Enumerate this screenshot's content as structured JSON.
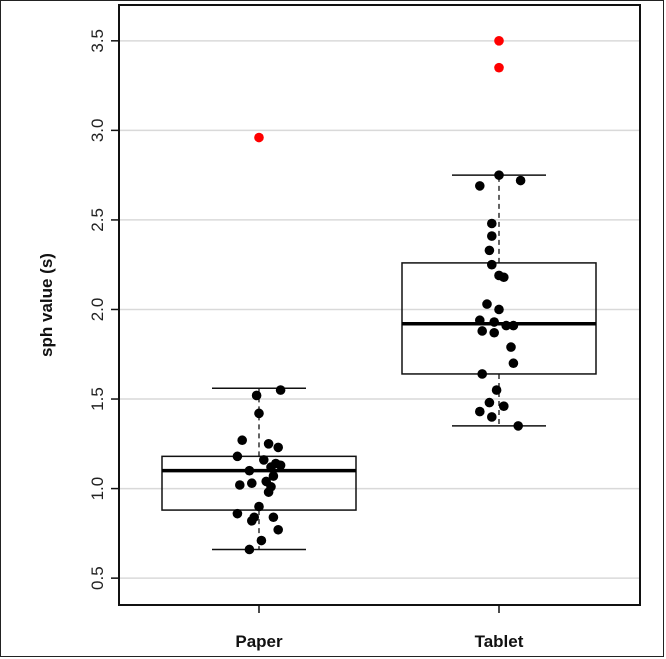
{
  "chart_data": {
    "type": "box",
    "ylabel": "sph value (s)",
    "ylim": [
      0.35,
      3.7
    ],
    "yticks": [
      "0.5",
      "1.0",
      "1.5",
      "2.0",
      "2.5",
      "3.0",
      "3.5"
    ],
    "grid": "horizontal",
    "categories": [
      "Paper",
      "Tablet"
    ],
    "boxes": [
      {
        "category": "Paper",
        "whisker_low": 0.66,
        "q1": 0.88,
        "median": 1.1,
        "q3": 1.18,
        "whisker_high": 1.56,
        "outliers": [
          2.96
        ],
        "points": [
          [
            -0.01,
            1.52
          ],
          [
            0.0,
            1.42
          ],
          [
            -0.07,
            1.27
          ],
          [
            0.08,
            1.23
          ],
          [
            0.04,
            1.25
          ],
          [
            -0.09,
            1.18
          ],
          [
            0.02,
            1.16
          ],
          [
            0.07,
            1.14
          ],
          [
            0.05,
            1.12
          ],
          [
            0.09,
            1.13
          ],
          [
            -0.04,
            1.1
          ],
          [
            0.06,
            1.07
          ],
          [
            -0.03,
            1.03
          ],
          [
            0.03,
            1.04
          ],
          [
            0.05,
            1.01
          ],
          [
            -0.08,
            1.02
          ],
          [
            0.04,
            0.98
          ],
          [
            0.0,
            0.9
          ],
          [
            0.06,
            0.84
          ],
          [
            -0.09,
            0.86
          ],
          [
            -0.03,
            0.82
          ],
          [
            -0.02,
            0.84
          ],
          [
            0.08,
            0.77
          ],
          [
            0.01,
            0.71
          ],
          [
            -0.04,
            0.66
          ],
          [
            0.09,
            1.55
          ]
        ],
        "box_color": "#000000"
      },
      {
        "category": "Tablet",
        "whisker_low": 1.35,
        "q1": 1.64,
        "median": 1.92,
        "q3": 2.26,
        "whisker_high": 2.75,
        "outliers": [
          3.5,
          3.35
        ],
        "points": [
          [
            0.0,
            2.75
          ],
          [
            -0.08,
            2.69
          ],
          [
            0.09,
            2.72
          ],
          [
            -0.03,
            2.48
          ],
          [
            -0.03,
            2.41
          ],
          [
            -0.04,
            2.33
          ],
          [
            -0.03,
            2.25
          ],
          [
            0.02,
            2.18
          ],
          [
            0.0,
            2.19
          ],
          [
            -0.05,
            2.03
          ],
          [
            0.0,
            2.0
          ],
          [
            -0.08,
            1.94
          ],
          [
            -0.02,
            1.93
          ],
          [
            0.03,
            1.91
          ],
          [
            -0.07,
            1.88
          ],
          [
            0.06,
            1.91
          ],
          [
            -0.02,
            1.87
          ],
          [
            0.05,
            1.79
          ],
          [
            0.06,
            1.7
          ],
          [
            -0.07,
            1.64
          ],
          [
            -0.01,
            1.55
          ],
          [
            -0.04,
            1.48
          ],
          [
            0.02,
            1.46
          ],
          [
            -0.08,
            1.43
          ],
          [
            -0.03,
            1.4
          ],
          [
            0.08,
            1.35
          ]
        ],
        "box_color": "#000000"
      }
    ],
    "point_color": "#000000",
    "outlier_color": "#ff0000"
  }
}
